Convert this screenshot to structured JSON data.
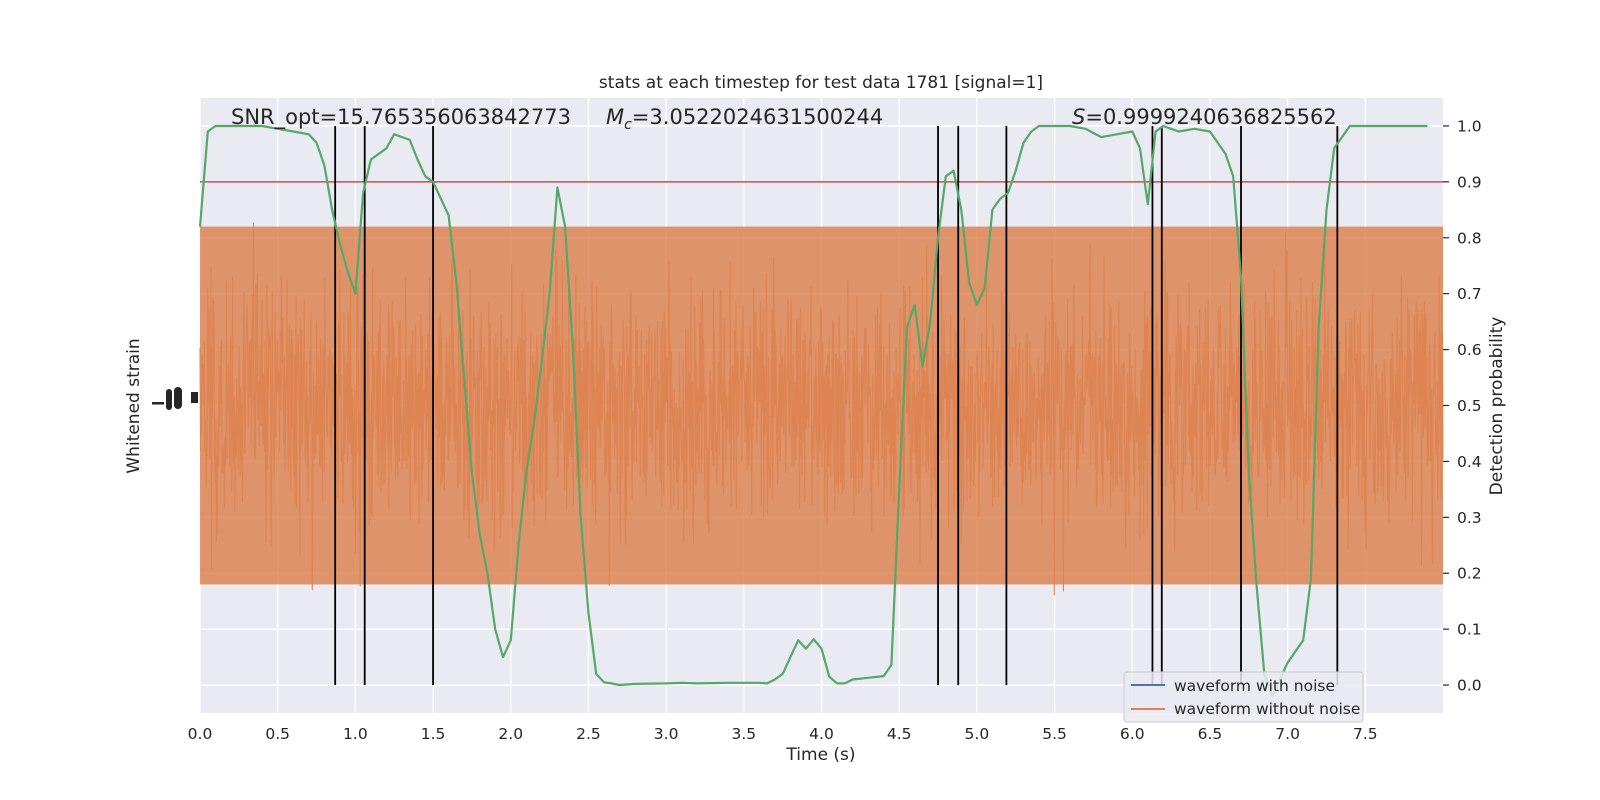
{
  "chart_data": {
    "type": "line",
    "title": "stats at each timestep for test data 1781 [signal=1]",
    "xlabel": "Time (s)",
    "ylabel_left": "Whitened strain",
    "ylabel_right": "Detection probability",
    "xlim": [
      0.0,
      8.0
    ],
    "ylim_right": [
      -0.05,
      1.05
    ],
    "grid": true,
    "legend_position": "lower-right",
    "x_ticks": [
      "0.0",
      "0.5",
      "1.0",
      "1.5",
      "2.0",
      "2.5",
      "3.0",
      "3.5",
      "4.0",
      "4.5",
      "5.0",
      "5.5",
      "6.0",
      "6.5",
      "7.0",
      "7.5"
    ],
    "y_ticks_right": [
      "0.0",
      "0.1",
      "0.2",
      "0.3",
      "0.4",
      "0.5",
      "0.6",
      "0.7",
      "0.8",
      "0.9",
      "1.0"
    ],
    "annotations": {
      "snr": "SNR_opt=15.765356063842773",
      "mc_symbol": "M",
      "mc_sub": "c",
      "mc_value": "=3.0522024631500244",
      "s_symbol": "S",
      "s_value": "=0.9999240636825562"
    },
    "threshold": 0.9,
    "vertical_lines_x": [
      0.87,
      1.06,
      1.5,
      4.75,
      4.88,
      5.19,
      6.13,
      6.19,
      6.7,
      7.32
    ],
    "series": [
      {
        "name": "waveform with noise",
        "color": "#4c72b0",
        "role": "legend-only"
      },
      {
        "name": "waveform without noise",
        "color": "#dd8452",
        "role": "strain",
        "center": 0.5,
        "amplitude": 0.27
      }
    ],
    "detection_probability": {
      "color": "#55a868",
      "x": [
        0.0,
        0.05,
        0.1,
        0.2,
        0.3,
        0.4,
        0.5,
        0.6,
        0.7,
        0.75,
        0.8,
        0.85,
        0.9,
        0.95,
        1.0,
        1.05,
        1.1,
        1.15,
        1.2,
        1.25,
        1.3,
        1.35,
        1.4,
        1.45,
        1.5,
        1.55,
        1.6,
        1.65,
        1.7,
        1.75,
        1.8,
        1.85,
        1.9,
        1.95,
        2.0,
        2.05,
        2.1,
        2.15,
        2.2,
        2.25,
        2.3,
        2.35,
        2.4,
        2.45,
        2.5,
        2.55,
        2.6,
        2.65,
        2.7,
        2.8,
        3.0,
        3.1,
        3.2,
        3.4,
        3.6,
        3.65,
        3.7,
        3.75,
        3.8,
        3.85,
        3.9,
        3.95,
        4.0,
        4.05,
        4.1,
        4.15,
        4.2,
        4.3,
        4.4,
        4.45,
        4.5,
        4.55,
        4.6,
        4.65,
        4.7,
        4.75,
        4.8,
        4.85,
        4.9,
        4.95,
        5.0,
        5.05,
        5.1,
        5.15,
        5.2,
        5.25,
        5.3,
        5.35,
        5.4,
        5.45,
        5.5,
        5.6,
        5.7,
        5.8,
        5.9,
        6.0,
        6.05,
        6.1,
        6.15,
        6.2,
        6.25,
        6.3,
        6.4,
        6.5,
        6.6,
        6.65,
        6.7,
        6.75,
        6.8,
        6.85,
        6.9,
        6.95,
        7.0,
        7.05,
        7.1,
        7.15,
        7.2,
        7.25,
        7.3,
        7.35,
        7.4,
        7.5,
        7.6,
        7.7,
        7.8,
        7.9
      ],
      "y": [
        0.82,
        0.99,
        1.0,
        1.0,
        1.0,
        1.0,
        0.995,
        0.99,
        0.985,
        0.97,
        0.93,
        0.85,
        0.79,
        0.74,
        0.7,
        0.88,
        0.94,
        0.95,
        0.96,
        0.985,
        0.98,
        0.975,
        0.94,
        0.91,
        0.9,
        0.87,
        0.84,
        0.72,
        0.55,
        0.38,
        0.27,
        0.2,
        0.1,
        0.05,
        0.08,
        0.25,
        0.38,
        0.47,
        0.58,
        0.7,
        0.89,
        0.82,
        0.6,
        0.3,
        0.13,
        0.02,
        0.005,
        0.003,
        0.0,
        0.002,
        0.003,
        0.004,
        0.003,
        0.004,
        0.004,
        0.003,
        0.01,
        0.02,
        0.05,
        0.08,
        0.065,
        0.082,
        0.065,
        0.015,
        0.003,
        0.003,
        0.01,
        0.013,
        0.016,
        0.036,
        0.35,
        0.64,
        0.68,
        0.57,
        0.65,
        0.8,
        0.91,
        0.92,
        0.85,
        0.72,
        0.68,
        0.71,
        0.85,
        0.87,
        0.88,
        0.92,
        0.97,
        0.99,
        1.0,
        1.0,
        1.0,
        1.0,
        0.995,
        0.98,
        0.985,
        0.99,
        0.96,
        0.86,
        0.99,
        1.0,
        0.995,
        0.99,
        0.995,
        0.99,
        0.95,
        0.91,
        0.73,
        0.38,
        0.18,
        0.02,
        -0.02,
        0.01,
        0.04,
        0.06,
        0.08,
        0.19,
        0.64,
        0.85,
        0.96,
        0.98,
        1.0,
        1.0,
        1.0,
        1.0,
        1.0,
        1.0
      ]
    }
  }
}
